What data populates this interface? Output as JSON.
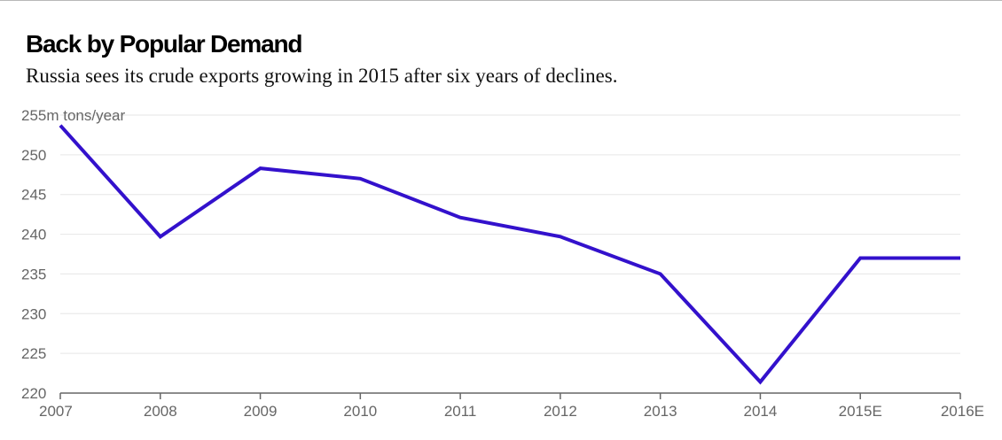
{
  "header": {
    "title": "Back by Popular Demand",
    "subtitle": "Russia sees its crude exports growing in 2015 after six years of declines."
  },
  "chart_data": {
    "type": "line",
    "title": "Back by Popular Demand",
    "subtitle": "Russia sees its crude exports growing in 2015 after six years of declines.",
    "ylabel": "m tons/year",
    "xlabel": "",
    "categories": [
      "2007",
      "2008",
      "2009",
      "2010",
      "2011",
      "2012",
      "2013",
      "2014",
      "2015E",
      "2016E"
    ],
    "series": [
      {
        "values": [
          253.7,
          239.7,
          248.3,
          247.0,
          242.1,
          239.7,
          235.0,
          221.4,
          237.0,
          237.0
        ]
      }
    ],
    "ylim": [
      220,
      255
    ],
    "yticks": [
      220,
      225,
      230,
      235,
      240,
      245,
      250,
      255
    ],
    "y_unit_label": "m tons/year",
    "grid": true,
    "legend": "none",
    "colors": {
      "line": "#3311cc",
      "grid": "#e6e6e6",
      "axis": "#666666",
      "tick_text": "#666666"
    }
  }
}
